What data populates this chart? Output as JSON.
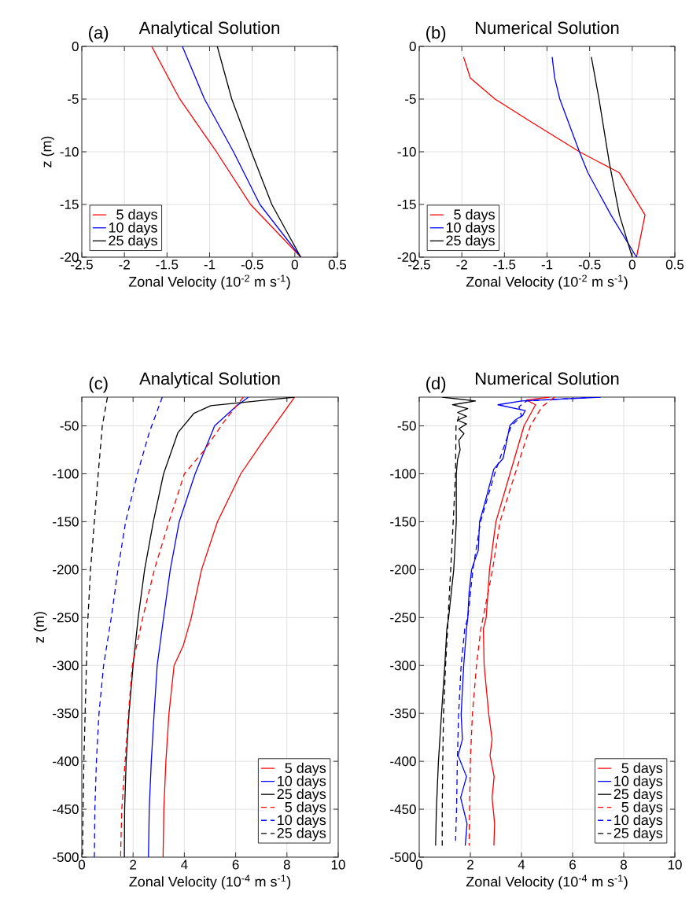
{
  "chart_data": [
    {
      "type": "line",
      "title": "Analytical Solution",
      "annotations": [
        "(a)"
      ],
      "xlabel": "Zonal Velocity (10$^{-2}$ m s$^{-1}$)",
      "ylabel": "z (m)",
      "xlim": [
        -2.5,
        0.5
      ],
      "ylim": [
        -20,
        0
      ],
      "xticks": [
        -2.5,
        -2,
        -1.5,
        -1,
        -0.5,
        0,
        0.5
      ],
      "yticks": [
        -20,
        -15,
        -10,
        -5,
        0
      ],
      "grid": true,
      "legend": "bottom left",
      "series": [
        {
          "name": "5 days",
          "color": "#ff0000",
          "line_style": "solid",
          "x": [
            -1.68,
            -1.35,
            -0.92,
            -0.52,
            0.07
          ],
          "values": [
            0,
            -5,
            -10,
            -15,
            -20
          ]
        },
        {
          "name": "10 days",
          "color": "#0000ff",
          "line_style": "solid",
          "x": [
            -1.32,
            -1.06,
            -0.72,
            -0.41,
            0.07
          ],
          "values": [
            0,
            -5,
            -10,
            -15,
            -20
          ]
        },
        {
          "name": "25 days",
          "color": "#000000",
          "line_style": "solid",
          "x": [
            -0.91,
            -0.74,
            -0.51,
            -0.27,
            0.07
          ],
          "values": [
            0,
            -5,
            -10,
            -15,
            -20
          ]
        }
      ]
    },
    {
      "type": "line",
      "title": "Numerical Solution",
      "annotations": [
        "(b)"
      ],
      "xlabel": "Zonal Velocity (10$^{-2}$ m s$^{-1}$)",
      "xlim": [
        -2.5,
        0.5
      ],
      "ylim": [
        -20,
        0
      ],
      "xticks": [
        -2.5,
        -2,
        -1.5,
        -1,
        -0.5,
        0,
        0.5
      ],
      "yticks": [
        -20,
        -15,
        -10,
        -5,
        0
      ],
      "grid": true,
      "legend": "bottom left",
      "series": [
        {
          "name": "5 days",
          "color": "#ff0000",
          "line_style": "solid",
          "x": [
            -1.98,
            -1.9,
            -1.61,
            -1.22,
            -0.62,
            -0.15,
            0.15,
            0.05
          ],
          "values": [
            -1,
            -3,
            -5,
            -7,
            -10,
            -12,
            -16,
            -20
          ]
        },
        {
          "name": "10 days",
          "color": "#0000ff",
          "line_style": "solid",
          "x": [
            -0.94,
            -0.91,
            -0.85,
            -0.62,
            -0.52,
            -0.25,
            0.05
          ],
          "values": [
            -1,
            -3,
            -5,
            -10,
            -12,
            -16,
            -20
          ]
        },
        {
          "name": "25 days",
          "color": "#000000",
          "line_style": "solid",
          "x": [
            -0.48,
            -0.39,
            -0.27,
            -0.15,
            0.0
          ],
          "values": [
            -1,
            -5,
            -11,
            -16,
            -20
          ]
        }
      ]
    },
    {
      "type": "line",
      "title": "Analytical Solution",
      "annotations": [
        "(c)"
      ],
      "xlabel": "Zonal Velocity (10$^{-4}$ m s$^{-1}$)",
      "ylabel": "z (m)",
      "xlim": [
        0,
        10
      ],
      "ylim": [
        -500,
        -20
      ],
      "xticks": [
        0,
        2,
        4,
        6,
        8,
        10
      ],
      "yticks": [
        -500,
        -450,
        -400,
        -350,
        -300,
        -250,
        -200,
        -150,
        -100,
        -50
      ],
      "grid": true,
      "legend": "bottom right",
      "series": [
        {
          "name": "5 days",
          "color": "#ff0000",
          "line_style": "solid",
          "x": [
            8.3,
            7.02,
            6.2,
            5.29,
            4.67,
            4.27,
            3.96,
            3.6,
            3.4,
            3.28,
            3.2,
            3.17
          ],
          "values": [
            -20,
            -68,
            -100,
            -150,
            -200,
            -250,
            -279,
            -300,
            -350,
            -400,
            -450,
            -500
          ]
        },
        {
          "name": "10 days",
          "color": "#0000ff",
          "line_style": "solid",
          "x": [
            6.5,
            6.0,
            5.18,
            4.42,
            3.8,
            3.45,
            3.19,
            2.94,
            2.82,
            2.71,
            2.63,
            2.6
          ],
          "values": [
            -20,
            -30,
            -50,
            -100,
            -150,
            -200,
            -250,
            -300,
            -350,
            -400,
            -450,
            -500
          ]
        },
        {
          "name": "25 days",
          "color": "#000000",
          "line_style": "solid",
          "x": [
            8.3,
            5.03,
            4.37,
            3.75,
            3.19,
            2.79,
            2.45,
            2.2,
            2.0,
            1.84,
            1.73,
            1.67,
            1.66
          ],
          "values": [
            -20,
            -29,
            -37,
            -57,
            -100,
            -150,
            -200,
            -250,
            -300,
            -350,
            -400,
            -450,
            -500
          ]
        },
        {
          "name": "5 days",
          "color": "#ff0000",
          "line_style": "dashed",
          "x": [
            6.3,
            5.54,
            4.76,
            4.0,
            3.4,
            2.83,
            2.38,
            1.97,
            1.82,
            1.69,
            1.56,
            1.51
          ],
          "values": [
            -20,
            -46,
            -76,
            -100,
            -150,
            -200,
            -250,
            -300,
            -350,
            -400,
            -450,
            -500
          ]
        },
        {
          "name": "10 days",
          "color": "#0000ff",
          "line_style": "dashed",
          "x": [
            3.14,
            2.63,
            2.17,
            1.71,
            1.41,
            1.15,
            0.85,
            0.67,
            0.57,
            0.51,
            0.49
          ],
          "values": [
            -20,
            -57,
            -100,
            -150,
            -200,
            -250,
            -300,
            -350,
            -400,
            -450,
            -500
          ]
        },
        {
          "name": "25 days",
          "color": "#000000",
          "line_style": "dashed",
          "x": [
            1.0,
            0.8,
            0.64,
            0.49,
            0.34,
            0.24,
            0.18,
            0.13,
            0.08,
            0.05,
            0.03
          ],
          "values": [
            -20,
            -50,
            -100,
            -150,
            -200,
            -250,
            -300,
            -350,
            -400,
            -450,
            -500
          ]
        }
      ]
    },
    {
      "type": "line",
      "title": "Numerical Solution",
      "annotations": [
        "(d)"
      ],
      "xlabel": "Zonal Velocity (10$^{-4}$ m s$^{-1}$)",
      "xlim": [
        0,
        10
      ],
      "ylim": [
        -500,
        -20
      ],
      "xticks": [
        0,
        2,
        4,
        6,
        8,
        10
      ],
      "yticks": [
        -500,
        -450,
        -400,
        -350,
        -300,
        -250,
        -200,
        -150,
        -100,
        -50
      ],
      "grid": true,
      "legend": "bottom right",
      "series": [
        {
          "name": "5 days",
          "color": "#ff0000",
          "line_style": "solid",
          "x": [
            5.1,
            4.2,
            4.55,
            4.1,
            3.55,
            3.0,
            2.75,
            2.62,
            2.51,
            2.54,
            2.72,
            2.85,
            2.77,
            2.93,
            2.85,
            2.95,
            2.92
          ],
          "values": [
            -20,
            -23,
            -28,
            -50,
            -100,
            -150,
            -200,
            -250,
            -262,
            -300,
            -351,
            -377,
            -394,
            -416,
            -438,
            -465,
            -488
          ]
        },
        {
          "name": "10 days",
          "color": "#0000ff",
          "line_style": "solid",
          "x": [
            7.1,
            4.0,
            3.08,
            4.15,
            4.05,
            3.75,
            3.54,
            3.44,
            3.28,
            2.92,
            2.87,
            2.51,
            2.36,
            2.31,
            2.2,
            2.05,
            1.95,
            1.9,
            1.85,
            1.74,
            1.64,
            1.69,
            1.52,
            1.85,
            1.62,
            1.87,
            1.8
          ],
          "values": [
            -20,
            -24,
            -28,
            -34,
            -39,
            -44,
            -50,
            -64,
            -84,
            -95,
            -100,
            -136,
            -150,
            -180,
            -188,
            -200,
            -224,
            -250,
            -262,
            -300,
            -351,
            -377,
            -394,
            -416,
            -438,
            -465,
            -488
          ]
        },
        {
          "name": "25 days",
          "color": "#000000",
          "line_style": "solid",
          "x": [
            0.9,
            2.2,
            1.3,
            1.9,
            1.5,
            1.85,
            1.5,
            1.85,
            1.55,
            1.75,
            1.55,
            1.6,
            1.5,
            1.45,
            1.45,
            1.35,
            1.15,
            1.08,
            1.0,
            0.87,
            0.75,
            0.67,
            0.64
          ],
          "values": [
            -20,
            -24,
            -28,
            -32,
            -36,
            -40,
            -44,
            -48,
            -53,
            -58,
            -65,
            -75,
            -85,
            -100,
            -150,
            -200,
            -250,
            -262,
            -300,
            -351,
            -401,
            -451,
            -488
          ]
        },
        {
          "name": "5 days",
          "color": "#ff0000",
          "line_style": "dashed",
          "x": [
            5.3,
            4.8,
            4.35,
            3.75,
            3.16,
            2.87,
            2.5,
            2.41,
            2.24,
            2.08,
            2.0,
            1.97,
            1.95
          ],
          "values": [
            -20,
            -30,
            -50,
            -100,
            -150,
            -200,
            -250,
            -262,
            -300,
            -351,
            -401,
            -451,
            -488
          ]
        },
        {
          "name": "10 days",
          "color": "#0000ff",
          "line_style": "dashed",
          "x": [
            6.9,
            4.2,
            3.9,
            4.0,
            3.6,
            2.95,
            2.4,
            2.1,
            1.9,
            1.78,
            1.64,
            1.54,
            1.49,
            1.46,
            1.42
          ],
          "values": [
            -20,
            -24,
            -30,
            -40,
            -50,
            -100,
            -150,
            -200,
            -250,
            -262,
            -300,
            -351,
            -401,
            -451,
            -483
          ]
        },
        {
          "name": "25 days",
          "color": "#000000",
          "line_style": "dashed",
          "x": [
            1.55,
            1.44,
            1.42,
            1.33,
            1.23,
            1.13,
            1.11,
            1.03,
            0.95,
            0.92,
            0.9,
            0.9
          ],
          "values": [
            -40,
            -50,
            -100,
            -150,
            -200,
            -250,
            -262,
            -300,
            -351,
            -401,
            -451,
            -488
          ]
        }
      ]
    }
  ]
}
